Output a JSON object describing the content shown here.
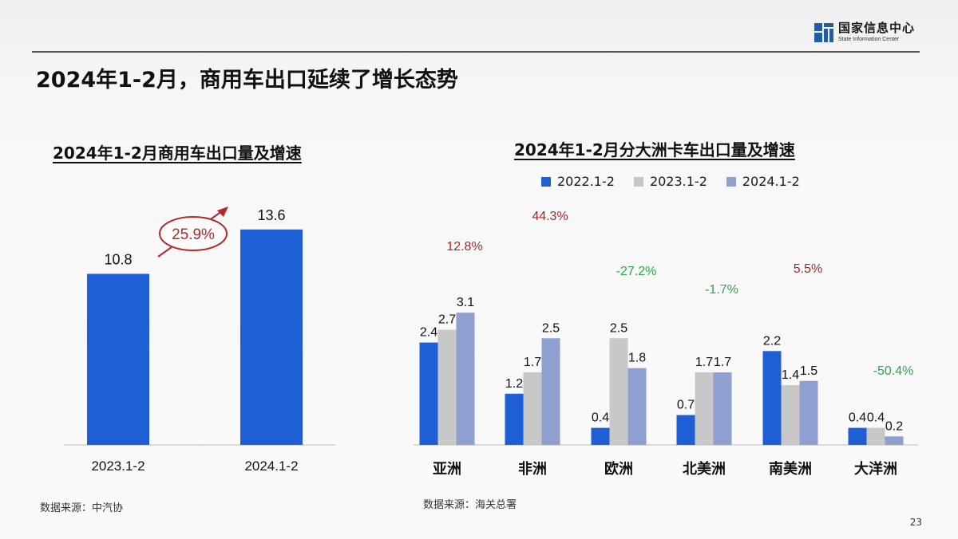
{
  "header": {
    "title": "2024年1-2月，商用车出口延续了增长态势",
    "logo_cn": "国家信息中心",
    "logo_en": "State Information Center",
    "page_number": "23"
  },
  "left": {
    "title": "2024年1-2月商用车出口量及增速",
    "source": "数据来源：中汽协",
    "growth_label": "25.9%",
    "bar_color": "#1f5fd6",
    "growth_color": "#b02a2a"
  },
  "right": {
    "title": "2024年1-2月分大洲卡车出口量及增速",
    "source": "数据来源：海关总署",
    "colors": {
      "2022.1-2": "#1f5fd6",
      "2023.1-2": "#c8c8c8",
      "2024.1-2": "#8f9fd0"
    },
    "positive_color": "#a02a2a",
    "negative_color": "#2aa84a"
  },
  "chart_data": [
    {
      "type": "bar",
      "title": "2024年1-2月商用车出口量及增速",
      "categories": [
        "2023.1-2",
        "2024.1-2"
      ],
      "values": [
        10.8,
        13.6
      ],
      "data_labels": [
        "10.8",
        "13.6"
      ],
      "annotations": [
        "25.9%"
      ],
      "ylim": [
        0,
        15
      ],
      "grid": false
    },
    {
      "type": "bar",
      "title": "2024年1-2月分大洲卡车出口量及增速",
      "categories": [
        "亚洲",
        "非洲",
        "欧洲",
        "北美洲",
        "南美洲",
        "大洋洲"
      ],
      "series": [
        {
          "name": "2022.1-2",
          "values": [
            2.4,
            1.2,
            0.4,
            0.7,
            2.2,
            0.4
          ],
          "labels": [
            "2.4",
            "1.2",
            "0.4",
            "0.7",
            "2.2",
            "0.4"
          ]
        },
        {
          "name": "2023.1-2",
          "values": [
            2.7,
            1.7,
            2.5,
            1.7,
            1.4,
            0.4
          ],
          "labels": [
            "2.7",
            "1.7",
            "2.5",
            "1.7",
            "1.4",
            "0.4"
          ]
        },
        {
          "name": "2024.1-2",
          "values": [
            3.1,
            2.5,
            1.8,
            1.7,
            1.5,
            0.2
          ],
          "labels": [
            "3.1",
            "2.5",
            "1.8",
            "1.7",
            "1.5",
            "0.2"
          ]
        }
      ],
      "growth_labels": [
        "12.8%",
        "44.3%",
        "-27.2%",
        "-1.7%",
        "5.5%",
        "-50.4%"
      ],
      "legend_position": "top",
      "ylim": [
        0,
        3.5
      ],
      "grid": false
    }
  ]
}
